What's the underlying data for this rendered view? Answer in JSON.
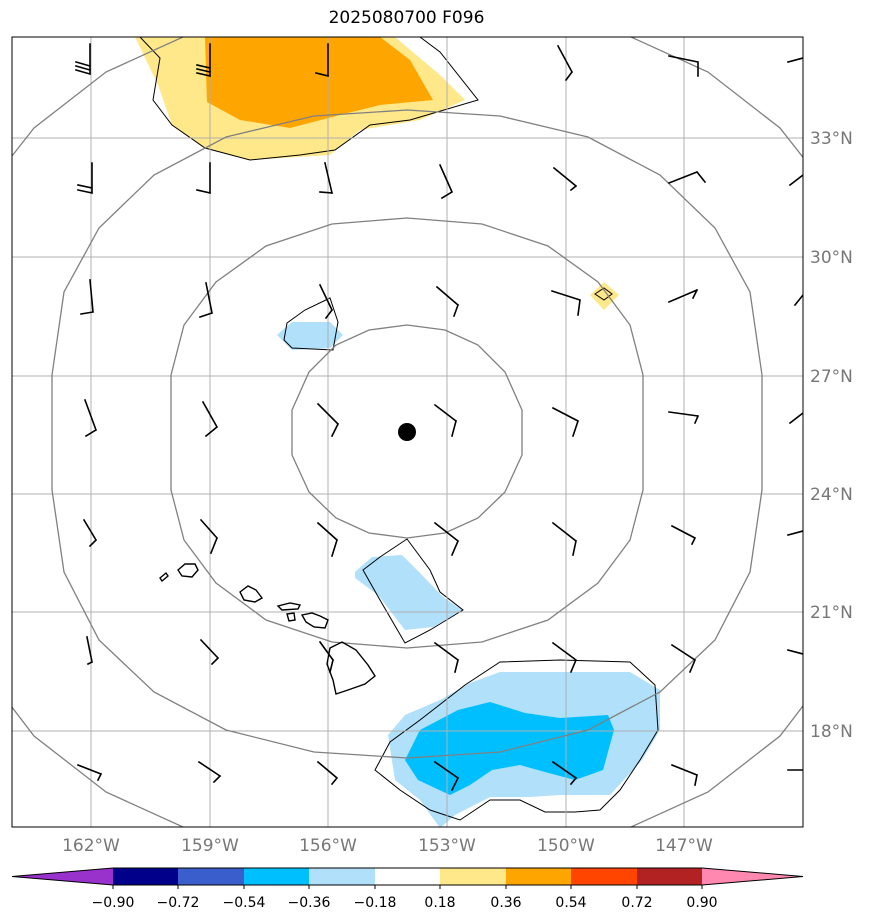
{
  "title": "2025080700 F096",
  "lat_labels": [
    "33°N",
    "30°N",
    "27°N",
    "24°N",
    "21°N",
    "18°N"
  ],
  "lon_labels": [
    "162°W",
    "159°W",
    "156°W",
    "153°W",
    "150°W",
    "147°W"
  ],
  "colorbar": {
    "colors": [
      "#9932cc",
      "#00008b",
      "#3a5fcd",
      "#00bfff",
      "#b0e0fa",
      "#ffffff",
      "#ffe88a",
      "#ffa500",
      "#ff4500",
      "#b22222",
      "#ff88b0"
    ],
    "tick_labels": [
      "−0.90",
      "−0.72",
      "−0.54",
      "−0.36",
      "−0.18",
      "0.18",
      "0.36",
      "0.54",
      "0.72",
      "0.90"
    ]
  },
  "storm_center": {
    "lon": -154.0,
    "lat": 25.5
  },
  "colors": {
    "grid": "#b0b0b0",
    "rings": "#808080",
    "coast": "#000000",
    "pos_light": "#ffe88a",
    "pos_mid": "#ffa500",
    "neg_light": "#b0e0fa",
    "neg_mid": "#00bfff"
  }
}
